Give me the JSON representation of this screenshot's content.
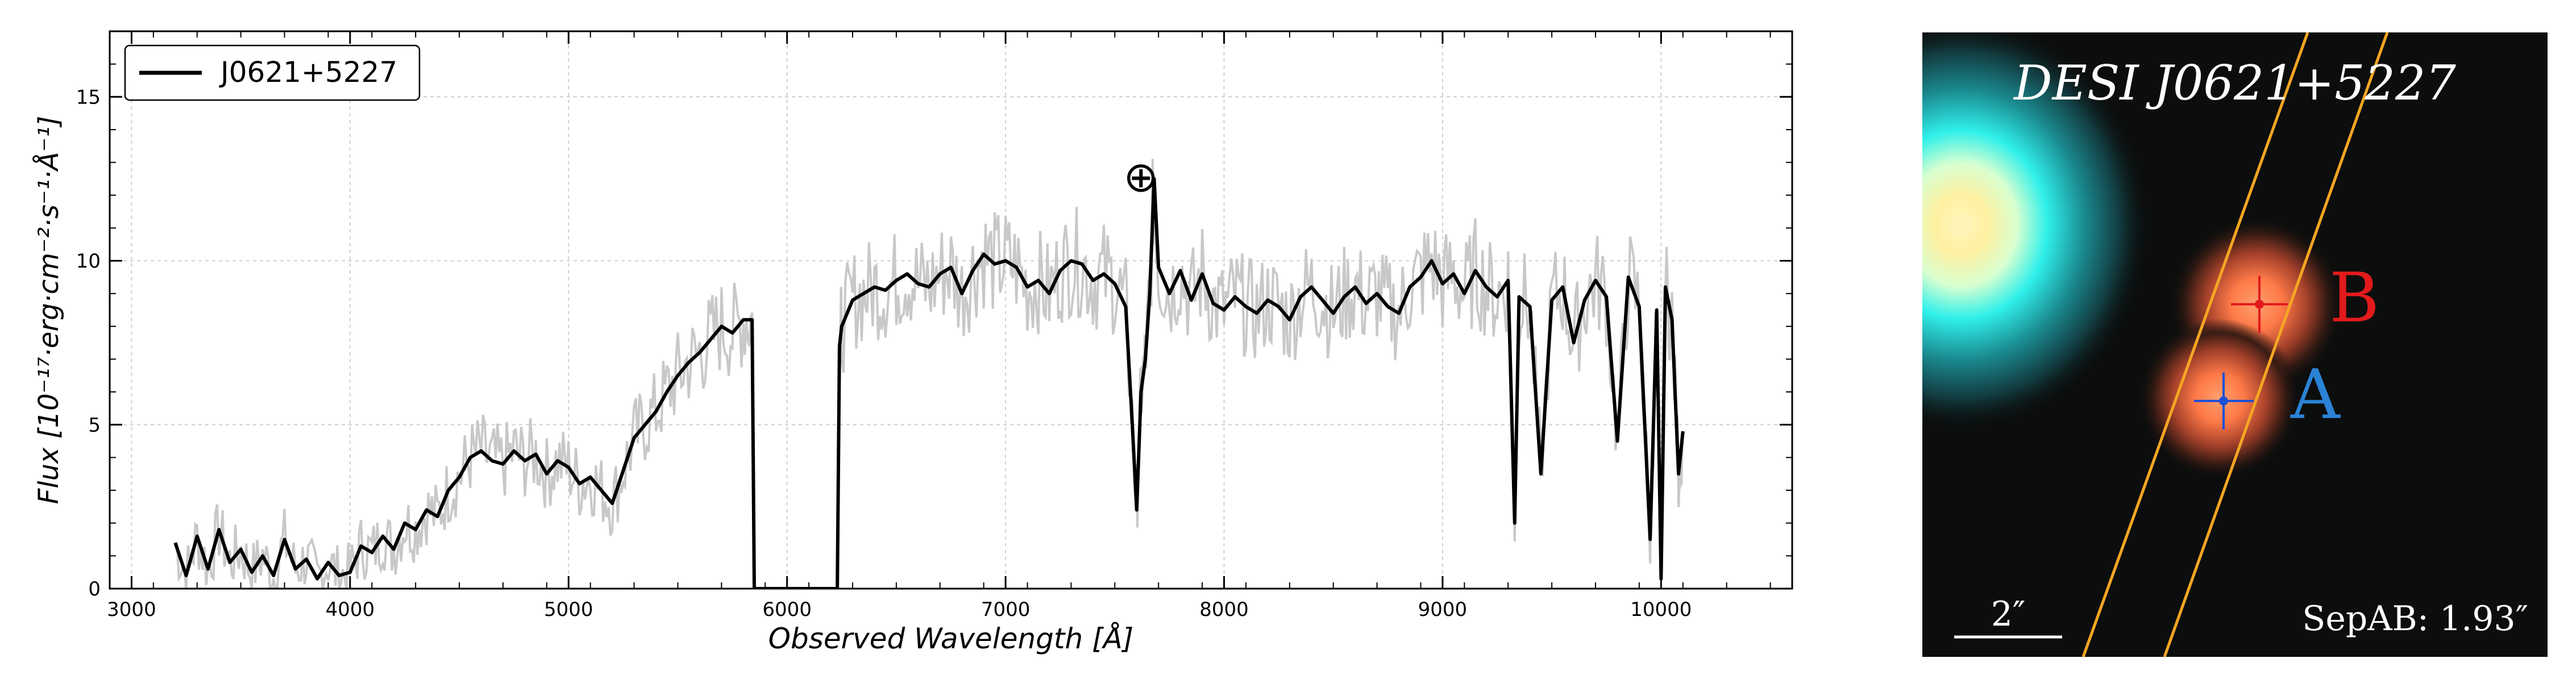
{
  "chart_data": [
    {
      "type": "line",
      "xlabel": "Observed Wavelength [Å]",
      "ylabel": "Flux [10⁻¹⁷·erg·cm⁻²·s⁻¹·Å⁻¹]",
      "xlim": [
        2900,
        10600
      ],
      "ylim": [
        0,
        17
      ],
      "xticks": [
        3000,
        4000,
        5000,
        6000,
        7000,
        8000,
        9000,
        10000
      ],
      "yticks": [
        0,
        5,
        10,
        15
      ],
      "grid": true,
      "legend": {
        "position": "top-left",
        "entries": [
          "J0621+5227"
        ]
      },
      "annotation": {
        "symbol": "⊕",
        "x": 7620,
        "y": 12.5
      },
      "series": [
        {
          "name": "J0621+5227",
          "color": "#000000",
          "x": [
            3200,
            3250,
            3300,
            3350,
            3400,
            3450,
            3500,
            3550,
            3600,
            3650,
            3700,
            3750,
            3800,
            3850,
            3900,
            3950,
            4000,
            4050,
            4100,
            4150,
            4200,
            4250,
            4300,
            4350,
            4400,
            4450,
            4500,
            4550,
            4600,
            4650,
            4700,
            4750,
            4800,
            4850,
            4900,
            4950,
            5000,
            5050,
            5100,
            5150,
            5200,
            5250,
            5300,
            5350,
            5400,
            5450,
            5500,
            5550,
            5600,
            5650,
            5700,
            5750,
            5800,
            5840,
            5850,
            6230,
            6240,
            6250,
            6300,
            6350,
            6400,
            6450,
            6500,
            6550,
            6600,
            6650,
            6700,
            6750,
            6800,
            6850,
            6900,
            6950,
            7000,
            7050,
            7100,
            7150,
            7200,
            7250,
            7300,
            7350,
            7400,
            7450,
            7500,
            7550,
            7580,
            7600,
            7620,
            7640,
            7660,
            7680,
            7700,
            7750,
            7800,
            7850,
            7900,
            7950,
            8000,
            8050,
            8100,
            8150,
            8200,
            8250,
            8300,
            8350,
            8400,
            8450,
            8500,
            8550,
            8600,
            8650,
            8700,
            8750,
            8800,
            8850,
            8900,
            8950,
            9000,
            9050,
            9100,
            9150,
            9200,
            9250,
            9300,
            9330,
            9350,
            9400,
            9450,
            9500,
            9550,
            9600,
            9650,
            9700,
            9750,
            9800,
            9850,
            9900,
            9950,
            9980,
            10000,
            10020,
            10050,
            10080,
            10100
          ],
          "y": [
            1.4,
            0.4,
            1.6,
            0.6,
            1.8,
            0.8,
            1.2,
            0.5,
            1.0,
            0.4,
            1.5,
            0.6,
            0.9,
            0.3,
            0.8,
            0.4,
            0.5,
            1.3,
            1.1,
            1.6,
            1.2,
            2.0,
            1.8,
            2.4,
            2.2,
            3.0,
            3.4,
            4.0,
            4.2,
            3.9,
            3.8,
            4.2,
            3.9,
            4.1,
            3.5,
            3.9,
            3.7,
            3.2,
            3.4,
            3.0,
            2.6,
            3.6,
            4.6,
            5.0,
            5.4,
            6.0,
            6.5,
            6.9,
            7.2,
            7.6,
            8.0,
            7.8,
            8.2,
            8.2,
            0,
            0,
            7.4,
            8.0,
            8.8,
            9.0,
            9.2,
            9.1,
            9.4,
            9.6,
            9.3,
            9.2,
            9.6,
            9.8,
            9.0,
            9.7,
            10.2,
            9.9,
            10.0,
            9.8,
            9.2,
            9.4,
            9.0,
            9.7,
            10.0,
            9.9,
            9.4,
            9.6,
            9.3,
            8.6,
            5.0,
            2.4,
            6.0,
            7.0,
            9.0,
            12.5,
            9.8,
            9.0,
            9.7,
            8.8,
            9.6,
            8.7,
            8.5,
            8.9,
            8.6,
            8.4,
            8.8,
            8.6,
            8.2,
            8.9,
            9.2,
            8.8,
            8.4,
            8.9,
            9.2,
            8.7,
            9.0,
            8.6,
            8.4,
            9.2,
            9.5,
            10.0,
            9.3,
            9.6,
            9.0,
            9.7,
            9.2,
            8.9,
            9.4,
            2.0,
            8.9,
            8.6,
            3.5,
            8.8,
            9.2,
            7.5,
            8.8,
            9.4,
            8.9,
            4.5,
            9.5,
            8.6,
            1.5,
            8.5,
            0.3,
            9.2,
            8.2,
            3.5,
            4.8
          ]
        }
      ]
    },
    {
      "type": "image",
      "title": "DESI J0621+5227",
      "markers": [
        {
          "label": "B",
          "color": "#e31a1c"
        },
        {
          "label": "A",
          "color": "#2b83d6"
        }
      ],
      "scalebar_label": "2″",
      "separation_label": "SepAB: 1.93″",
      "slit_color": "#f5a623"
    }
  ]
}
